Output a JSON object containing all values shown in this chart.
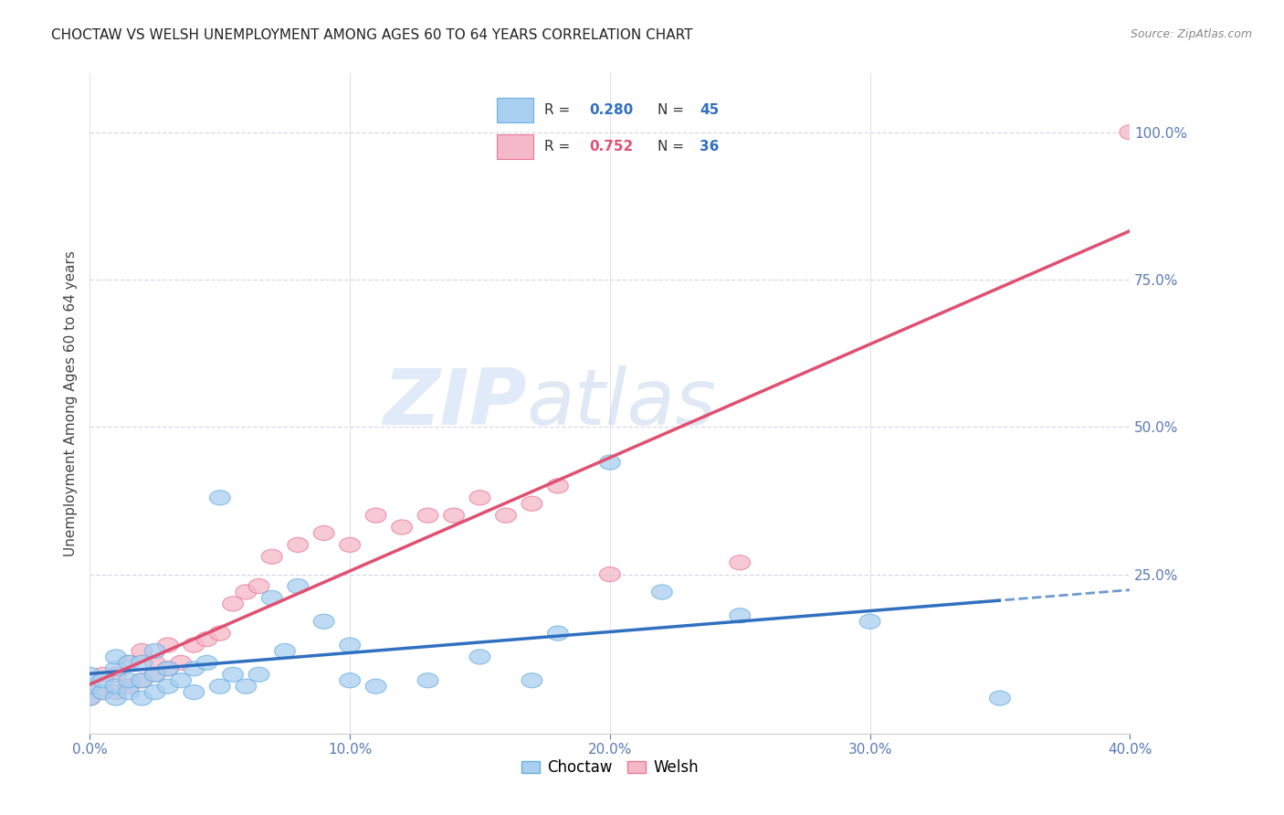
{
  "title": "CHOCTAW VS WELSH UNEMPLOYMENT AMONG AGES 60 TO 64 YEARS CORRELATION CHART",
  "source": "Source: ZipAtlas.com",
  "ylabel": "Unemployment Among Ages 60 to 64 years",
  "xlim": [
    0.0,
    0.4
  ],
  "ylim": [
    -0.02,
    1.1
  ],
  "xtick_labels": [
    "0.0%",
    "",
    "10.0%",
    "",
    "20.0%",
    "",
    "30.0%",
    "",
    "40.0%"
  ],
  "xtick_vals": [
    0.0,
    0.05,
    0.1,
    0.15,
    0.2,
    0.25,
    0.3,
    0.35,
    0.4
  ],
  "ytick_labels": [
    "100.0%",
    "75.0%",
    "50.0%",
    "25.0%"
  ],
  "ytick_vals": [
    1.0,
    0.75,
    0.5,
    0.25
  ],
  "choctaw_color": "#a8cff0",
  "welsh_color": "#f5b8c8",
  "choctaw_edge": "#6aaee0",
  "welsh_edge": "#e87898",
  "trend_choctaw_color": "#3070c0",
  "trend_welsh_color": "#e05070",
  "R_choctaw": 0.28,
  "N_choctaw": 45,
  "R_welsh": 0.752,
  "N_welsh": 36,
  "choctaw_x": [
    0.0,
    0.0,
    0.0,
    0.005,
    0.005,
    0.01,
    0.01,
    0.01,
    0.01,
    0.015,
    0.015,
    0.015,
    0.02,
    0.02,
    0.02,
    0.025,
    0.025,
    0.025,
    0.03,
    0.03,
    0.035,
    0.04,
    0.04,
    0.045,
    0.05,
    0.05,
    0.055,
    0.06,
    0.065,
    0.07,
    0.075,
    0.08,
    0.09,
    0.1,
    0.1,
    0.11,
    0.13,
    0.15,
    0.17,
    0.18,
    0.2,
    0.22,
    0.25,
    0.3,
    0.35
  ],
  "choctaw_y": [
    0.04,
    0.06,
    0.08,
    0.05,
    0.07,
    0.04,
    0.06,
    0.09,
    0.11,
    0.05,
    0.07,
    0.1,
    0.04,
    0.07,
    0.1,
    0.05,
    0.08,
    0.12,
    0.06,
    0.09,
    0.07,
    0.05,
    0.09,
    0.1,
    0.06,
    0.38,
    0.08,
    0.06,
    0.08,
    0.21,
    0.12,
    0.23,
    0.17,
    0.07,
    0.13,
    0.06,
    0.07,
    0.11,
    0.07,
    0.15,
    0.44,
    0.22,
    0.18,
    0.17,
    0.04
  ],
  "welsh_x": [
    0.0,
    0.0,
    0.005,
    0.005,
    0.01,
    0.01,
    0.015,
    0.015,
    0.02,
    0.02,
    0.025,
    0.025,
    0.03,
    0.03,
    0.035,
    0.04,
    0.045,
    0.05,
    0.055,
    0.06,
    0.065,
    0.07,
    0.08,
    0.09,
    0.1,
    0.11,
    0.12,
    0.13,
    0.14,
    0.15,
    0.16,
    0.17,
    0.18,
    0.2,
    0.25,
    0.4
  ],
  "welsh_y": [
    0.04,
    0.06,
    0.05,
    0.08,
    0.05,
    0.08,
    0.06,
    0.1,
    0.07,
    0.12,
    0.08,
    0.1,
    0.09,
    0.13,
    0.1,
    0.13,
    0.14,
    0.15,
    0.2,
    0.22,
    0.23,
    0.28,
    0.3,
    0.32,
    0.3,
    0.35,
    0.33,
    0.35,
    0.35,
    0.38,
    0.35,
    0.37,
    0.4,
    0.25,
    0.27,
    1.0
  ],
  "background_color": "#ffffff",
  "grid_color": "#d8d8e8",
  "watermark_zip": "ZIP",
  "watermark_atlas": "atlas",
  "legend_R_color_choctaw": "#3070c0",
  "legend_R_color_welsh": "#e05070",
  "legend_N_color": "#3070c0"
}
